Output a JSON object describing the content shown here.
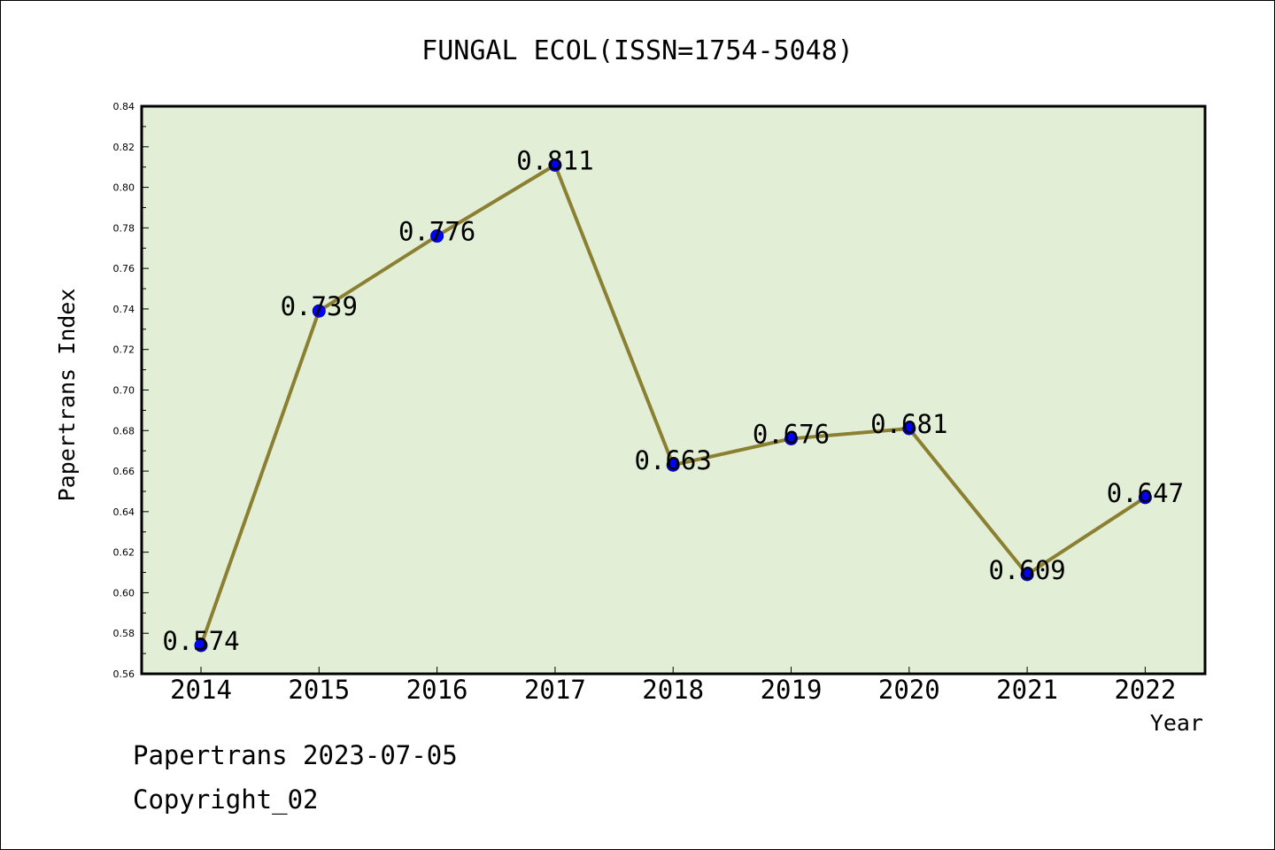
{
  "chart_data": {
    "type": "line",
    "title": "FUNGAL ECOL(ISSN=1754-5048)",
    "xlabel": "Year",
    "ylabel": "Papertrans Index",
    "categories": [
      "2014",
      "2015",
      "2016",
      "2017",
      "2018",
      "2019",
      "2020",
      "2021",
      "2022"
    ],
    "values": [
      0.574,
      0.739,
      0.776,
      0.811,
      0.663,
      0.676,
      0.681,
      0.609,
      0.647
    ],
    "data_labels": [
      "0.574",
      "0.739",
      "0.776",
      "0.811",
      "0.663",
      "0.676",
      "0.681",
      "0.609",
      "0.647"
    ],
    "ylim": [
      0.56,
      0.84
    ],
    "yticks": [
      "0.56",
      "0.58",
      "0.60",
      "0.62",
      "0.64",
      "0.66",
      "0.68",
      "0.70",
      "0.72",
      "0.74",
      "0.76",
      "0.78",
      "0.80",
      "0.82",
      "0.84"
    ],
    "grid": false,
    "legend": "none",
    "colors": {
      "plot_background": "#e2efd6",
      "line": "#8b8032",
      "marker": "#0000ff",
      "axis": "#000000"
    }
  },
  "footer": {
    "line1": "Papertrans 2023-07-05",
    "line2": "Copyright_02"
  }
}
